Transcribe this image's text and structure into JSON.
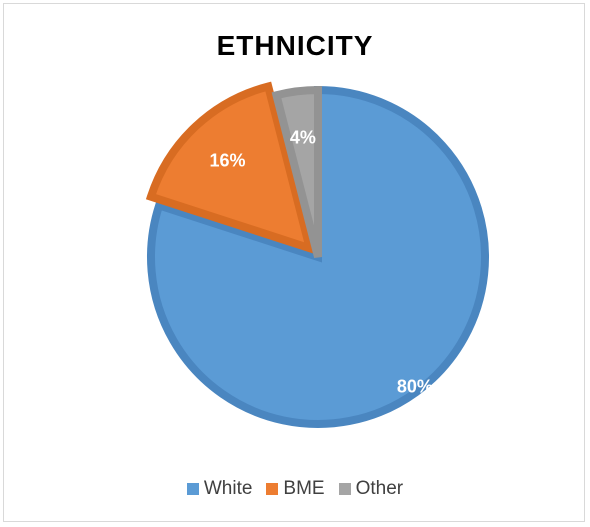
{
  "chart_data": {
    "type": "pie",
    "title": "ETHNICITY",
    "categories": [
      "White",
      "BME",
      "Other"
    ],
    "values": [
      80,
      16,
      4
    ],
    "labels": [
      "80%",
      "16%",
      "4%"
    ],
    "colors": [
      "#5b9bd5",
      "#ed7d31",
      "#a5a5a5"
    ],
    "borderColors": [
      "#4a86c0",
      "#d86c22",
      "#939393"
    ],
    "legend_position": "bottom"
  }
}
